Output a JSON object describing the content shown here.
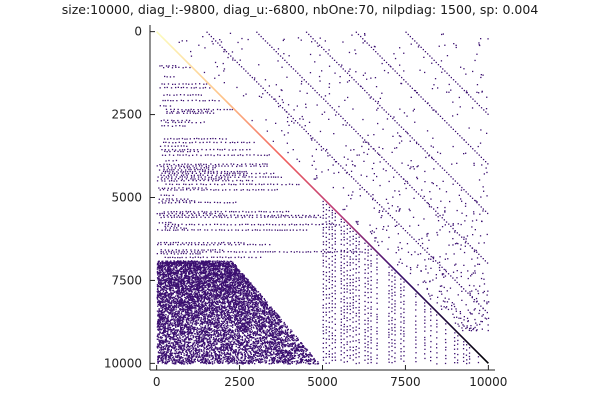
{
  "chart_data": {
    "type": "heatmap",
    "subtype": "sparsity-pattern",
    "title": "size:10000, diag_l:-9800, diag_u:-6800, nbOne:70, nilpdiag: 1500, sp: 0.004",
    "xlabel": "",
    "ylabel": "",
    "xlim": [
      -200,
      10200
    ],
    "ylim": [
      10200,
      -200
    ],
    "y_axis_inverted": true,
    "x_ticks": [
      0,
      2500,
      5000,
      7500,
      10000
    ],
    "y_ticks": [
      0,
      2500,
      5000,
      7500,
      10000
    ],
    "x_tick_labels": [
      "0",
      "2500",
      "5000",
      "7500",
      "10000"
    ],
    "y_tick_labels": [
      "0",
      "2500",
      "5000",
      "7500",
      "10000"
    ],
    "grid": false,
    "colorbar": false,
    "colormap": [
      "#000004",
      "#3b0f70",
      "#8c2981",
      "#de4968",
      "#fe9f6d",
      "#fcfdbf"
    ],
    "background_color": "#ffffff",
    "main_diagonal": {
      "from": [
        0,
        0
      ],
      "to": [
        10000,
        10000
      ],
      "color_start": "#fcfdbf",
      "color_end": "#000004"
    },
    "off_diagonals": [
      {
        "offset": 1500,
        "color": "#3b0f70"
      },
      {
        "offset": 3000,
        "color": "#3b0f70"
      },
      {
        "offset": 4500,
        "color": "#3b0f70"
      },
      {
        "offset": 6000,
        "color": "#3b0f70"
      },
      {
        "offset": 7500,
        "color": "#3b0f70"
      }
    ],
    "dense_lower_region": {
      "rows": [
        6900,
        10000
      ],
      "cols": [
        0,
        5000
      ],
      "color": "#3b0f70"
    }
  }
}
